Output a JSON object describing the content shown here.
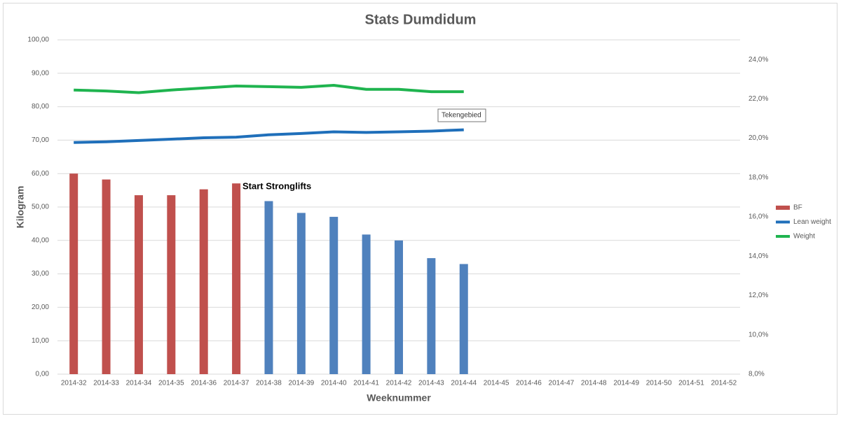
{
  "chart_data": {
    "type": "combo",
    "title": "Stats Dumdidum",
    "y_label": "Kilogram",
    "x_label": "Weeknummer",
    "annotation": "Start Stronglifts",
    "tooltip": "Tekengebied",
    "categories": [
      "2014-32",
      "2014-33",
      "2014-34",
      "2014-35",
      "2014-36",
      "2014-37",
      "2014-38",
      "2014-39",
      "2014-40",
      "2014-41",
      "2014-42",
      "2014-43",
      "2014-44",
      "2014-45",
      "2014-46",
      "2014-47",
      "2014-48",
      "2014-49",
      "2014-50",
      "2014-51",
      "2014-52"
    ],
    "ylim": [
      0,
      100
    ],
    "yticks": [
      {
        "value": 0,
        "label": "0,00"
      },
      {
        "value": 10,
        "label": "10,00"
      },
      {
        "value": 20,
        "label": "20,00"
      },
      {
        "value": 30,
        "label": "30,00"
      },
      {
        "value": 40,
        "label": "40,00"
      },
      {
        "value": 50,
        "label": "50,00"
      },
      {
        "value": 60,
        "label": "60,00"
      },
      {
        "value": 70,
        "label": "70,00"
      },
      {
        "value": 80,
        "label": "80,00"
      },
      {
        "value": 90,
        "label": "90,00"
      },
      {
        "value": 100,
        "label": "100,00"
      }
    ],
    "y2lim": [
      8,
      25
    ],
    "y2ticks": [
      {
        "value": 8,
        "label": "8,0%"
      },
      {
        "value": 10,
        "label": "10,0%"
      },
      {
        "value": 12,
        "label": "12,0%"
      },
      {
        "value": 14,
        "label": "14,0%"
      },
      {
        "value": 16,
        "label": "16,0%"
      },
      {
        "value": 18,
        "label": "18,0%"
      },
      {
        "value": 20,
        "label": "20,0%"
      },
      {
        "value": 22,
        "label": "22,0%"
      },
      {
        "value": 24,
        "label": "24,0%"
      }
    ],
    "grid": true,
    "legend": "right",
    "series": [
      {
        "name": "BF",
        "type": "bar",
        "axis": "y2",
        "color": "#c0504d",
        "point_colors": [
          "#c0504d",
          "#c0504d",
          "#c0504d",
          "#c0504d",
          "#c0504d",
          "#c0504d",
          "#4f81bd",
          "#4f81bd",
          "#4f81bd",
          "#4f81bd",
          "#4f81bd",
          "#4f81bd",
          "#4f81bd",
          null,
          null,
          null,
          null,
          null,
          null,
          null,
          null
        ],
        "values": [
          18.2,
          17.9,
          17.1,
          17.1,
          17.4,
          17.7,
          16.8,
          16.2,
          16.0,
          15.1,
          14.8,
          13.9,
          13.6,
          null,
          null,
          null,
          null,
          null,
          null,
          null,
          null
        ]
      },
      {
        "name": "Lean weight",
        "type": "line",
        "color": "#1f6fba",
        "values": [
          69.3,
          69.5,
          69.9,
          70.3,
          70.7,
          70.9,
          71.6,
          72.0,
          72.5,
          72.3,
          72.5,
          72.7,
          73.1,
          null,
          null,
          null,
          null,
          null,
          null,
          null,
          null
        ]
      },
      {
        "name": "Weight",
        "type": "line",
        "color": "#1fb44f",
        "values": [
          85.0,
          84.7,
          84.2,
          85.0,
          85.6,
          86.2,
          86.0,
          85.8,
          86.4,
          85.2,
          85.2,
          84.5,
          84.5,
          null,
          null,
          null,
          null,
          null,
          null,
          null,
          null
        ]
      }
    ]
  }
}
